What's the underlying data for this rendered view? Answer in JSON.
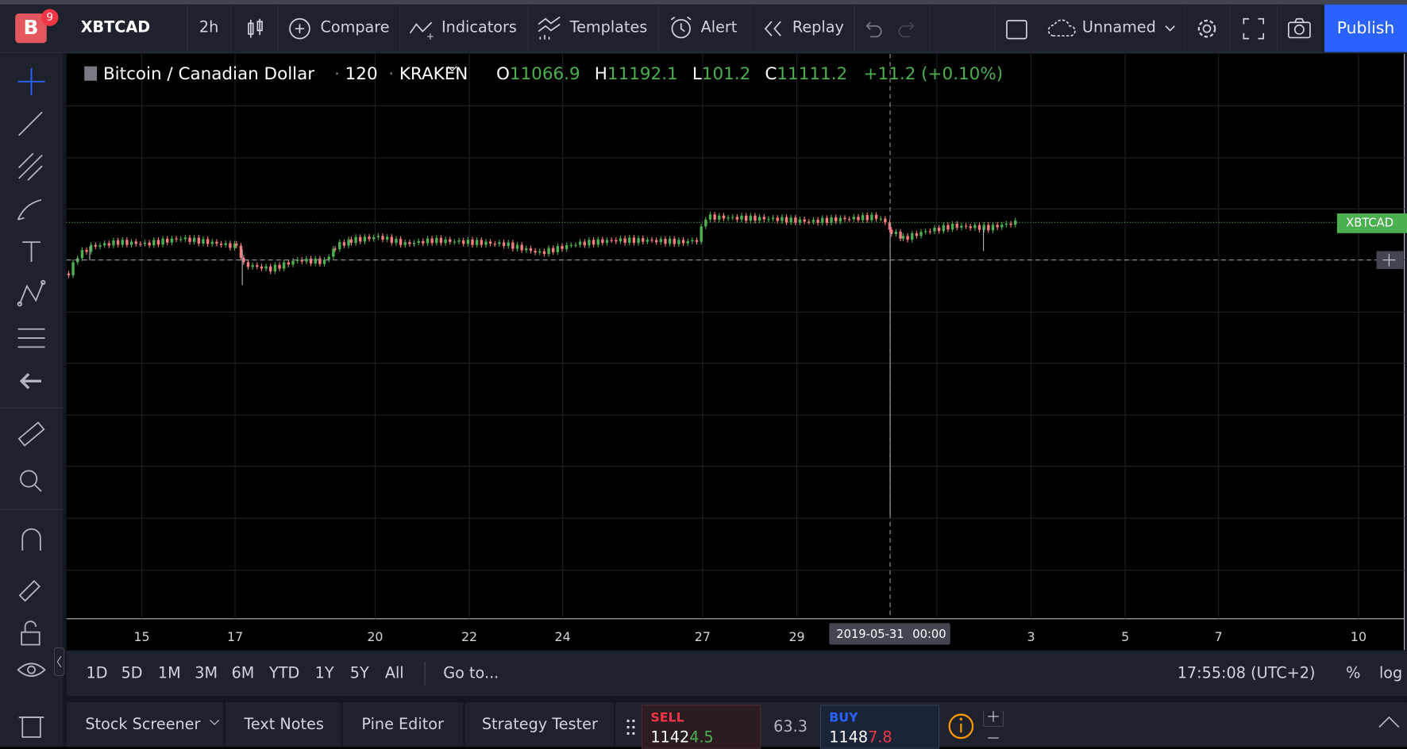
{
  "toolbar": {
    "avatar": "B",
    "badge": "9",
    "symbol": "XBTCAD",
    "interval": "2h",
    "buttons": [
      "Compare",
      "Indicators",
      "Templates",
      "Alert",
      "Replay"
    ],
    "layout_name": "Unnamed",
    "publish": "Publish"
  },
  "legend": {
    "name": "Bitcoin / Canadian Dollar",
    "interval": "120",
    "exchange": "KRAKEN",
    "ohlc": [
      {
        "key": "O",
        "value": "11066.9"
      },
      {
        "key": "H",
        "value": "11192.1"
      },
      {
        "key": "L",
        "value": "101.2"
      },
      {
        "key": "C",
        "value": "11111.2"
      }
    ],
    "change": "+11.2 (+0.10%)"
  },
  "price_label": "XBTCAD",
  "time_axis": {
    "labels": [
      "15",
      "17",
      "20",
      "22",
      "24",
      "27",
      "29",
      "3",
      "5",
      "7",
      "10"
    ],
    "crosshair_date": "2019-05-31",
    "crosshair_time": "00:00"
  },
  "range_bar": {
    "ranges": [
      "1D",
      "5D",
      "1M",
      "3M",
      "6M",
      "YTD",
      "1Y",
      "5Y",
      "All"
    ],
    "goto": "Go to...",
    "clock": "17:55:08 (UTC+2)",
    "percent": "%",
    "log": "log"
  },
  "bottom_panel": {
    "tabs": [
      "Stock Screener",
      "Text Notes",
      "Pine Editor",
      "Strategy Tester"
    ],
    "sell": {
      "label": "SELL",
      "price_parts": [
        "1142",
        "4.5"
      ]
    },
    "spread": "63.3",
    "buy": {
      "label": "BUY",
      "price_parts": [
        "1148",
        "7.8"
      ]
    }
  }
}
